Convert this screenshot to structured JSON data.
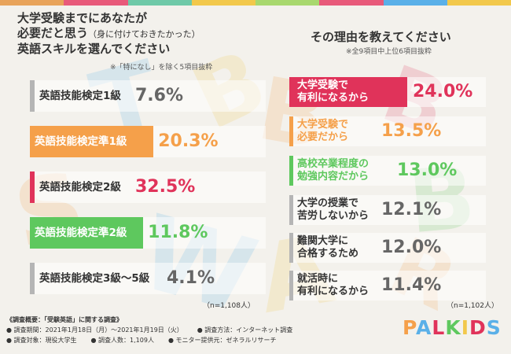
{
  "stripe_colors": [
    "#e8a35a",
    "#e85a7a",
    "#6fc9a8",
    "#f2c84b",
    "#a8d86e",
    "#e85a7a",
    "#5ab0e8",
    "#f2c84b"
  ],
  "left": {
    "title_line1": "大学受験までにあなたが",
    "title_line2": "必要だと思う",
    "title_line2_small": "（身に付けておきたかった）",
    "title_line3": "英語スキルを選んでください",
    "note": "※「特になし」を除く5項目抜粋",
    "n": "（n=1,108人）"
  },
  "right": {
    "title": "その理由を教えてください",
    "note": "※全9項目中上位6項目抜粋",
    "n": "（n=1,102人）"
  },
  "chart_data": [
    {
      "type": "bar",
      "title": "大学受験までにあなたが必要だと思う（身に付けておきたかった）英語スキルを選んでください",
      "categories": [
        "英語技能検定1級",
        "英語技能検定準1級",
        "英語技能検定2級",
        "英語技能検定準2級",
        "英語技能検定3級～5級"
      ],
      "values": [
        7.6,
        20.3,
        32.5,
        11.8,
        4.1
      ],
      "value_labels": [
        "7.6%",
        "20.3%",
        "32.5%",
        "11.8%",
        "4.1%"
      ],
      "colors": [
        "#b5b5b5",
        "#f5a04a",
        "#e0335a",
        "#5ec85e",
        "#b5b5b5"
      ],
      "text_colors": [
        "#333333",
        "#ffffff",
        "#333333",
        "#ffffff",
        "#333333"
      ],
      "value_colors": [
        "#666666",
        "#f5a04a",
        "#e0335a",
        "#5ec85e",
        "#666666"
      ]
    },
    {
      "type": "bar",
      "title": "その理由を教えてください",
      "categories": [
        "大学受験で\n有利になるから",
        "大学受験で\n必要だから",
        "高校卒業程度の\n勉強内容だから",
        "大学の授業で\n苦労しないから",
        "難関大学に\n合格するため",
        "就活時に\n有利になるから"
      ],
      "values": [
        24.0,
        13.5,
        13.0,
        12.1,
        12.0,
        11.4
      ],
      "value_labels": [
        "24.0%",
        "13.5%",
        "13.0%",
        "12.1%",
        "12.0%",
        "11.4%"
      ],
      "colors": [
        "#e0335a",
        "#f5a04a",
        "#5ec85e",
        "#b5b5b5",
        "#b5b5b5",
        "#b5b5b5"
      ],
      "text_colors": [
        "#ffffff",
        "#f5a04a",
        "#5ec85e",
        "#333333",
        "#333333",
        "#333333"
      ],
      "value_colors": [
        "#e0335a",
        "#f5a04a",
        "#5ec85e",
        "#666666",
        "#666666",
        "#666666"
      ]
    }
  ],
  "survey": {
    "heading": "《調査概要：「受験英語」に関する調査》",
    "period": "● 調査期間：2021年1月18日（月）～2021年1月19日（火）",
    "method": "● 調査方法：インターネット調査",
    "target": "● 調査対象：現役大学生",
    "count": "● 調査人数：1,109人",
    "provider": "● モニター提供元：ゼネラルリサーチ"
  },
  "logo": {
    "letters": [
      "P",
      "A",
      "L",
      "K",
      "I",
      "D",
      "S"
    ],
    "colors": [
      "#f5a04a",
      "#5ab0e8",
      "#e0335a",
      "#5ec85e",
      "#f2c84b",
      "#e0335a",
      "#5ab0e8"
    ]
  }
}
